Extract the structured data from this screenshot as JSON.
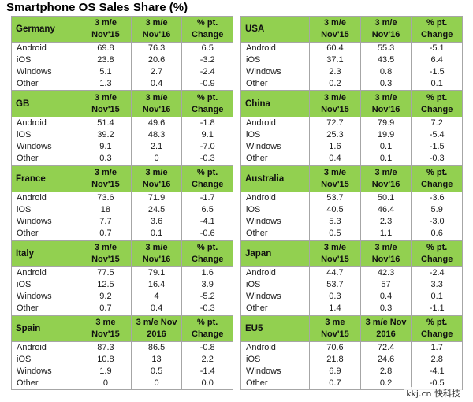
{
  "title": "Smartphone OS Sales Share (%)",
  "watermark": "kkj.cn 快科技",
  "colors": {
    "header_bg": "#92d050",
    "border": "#a6a6a6"
  },
  "regions": [
    {
      "name": "Germany",
      "headers": [
        "3 m/e Nov'15",
        "3 m/e Nov'16",
        "% pt. Change"
      ],
      "rows": [
        [
          "Android",
          "69.8",
          "76.3",
          "6.5"
        ],
        [
          "iOS",
          "23.8",
          "20.6",
          "-3.2"
        ],
        [
          "Windows",
          "5.1",
          "2.7",
          "-2.4"
        ],
        [
          "Other",
          "1.3",
          "0.4",
          "-0.9"
        ]
      ]
    },
    {
      "name": "GB",
      "headers": [
        "3 m/e Nov'15",
        "3 m/e Nov'16",
        "% pt. Change"
      ],
      "rows": [
        [
          "Android",
          "51.4",
          "49.6",
          "-1.8"
        ],
        [
          "iOS",
          "39.2",
          "48.3",
          "9.1"
        ],
        [
          "Windows",
          "9.1",
          "2.1",
          "-7.0"
        ],
        [
          "Other",
          "0.3",
          "0",
          "-0.3"
        ]
      ]
    },
    {
      "name": "France",
      "headers": [
        "3 m/e Nov'15",
        "3 m/e Nov'16",
        "% pt. Change"
      ],
      "rows": [
        [
          "Android",
          "73.6",
          "71.9",
          "-1.7"
        ],
        [
          "iOS",
          "18",
          "24.5",
          "6.5"
        ],
        [
          "Windows",
          "7.7",
          "3.6",
          "-4.1"
        ],
        [
          "Other",
          "0.7",
          "0.1",
          "-0.6"
        ]
      ]
    },
    {
      "name": "Italy",
      "headers": [
        "3 m/e Nov'15",
        "3 m/e Nov'16",
        "% pt. Change"
      ],
      "rows": [
        [
          "Android",
          "77.5",
          "79.1",
          "1.6"
        ],
        [
          "iOS",
          "12.5",
          "16.4",
          "3.9"
        ],
        [
          "Windows",
          "9.2",
          "4",
          "-5.2"
        ],
        [
          "Other",
          "0.7",
          "0.4",
          "-0.3"
        ]
      ]
    },
    {
      "name": "Spain",
      "headers": [
        "3 me Nov'15",
        "3 m/e Nov 2016",
        "% pt. Change"
      ],
      "rows": [
        [
          "Android",
          "87.3",
          "86.5",
          "-0.8"
        ],
        [
          "iOS",
          "10.8",
          "13",
          "2.2"
        ],
        [
          "Windows",
          "1.9",
          "0.5",
          "-1.4"
        ],
        [
          "Other",
          "0",
          "0",
          "0.0"
        ]
      ]
    },
    {
      "name": "USA",
      "headers": [
        "3 m/e Nov'15",
        "3 m/e Nov'16",
        "% pt. Change"
      ],
      "rows": [
        [
          "Android",
          "60.4",
          "55.3",
          "-5.1"
        ],
        [
          "iOS",
          "37.1",
          "43.5",
          "6.4"
        ],
        [
          "Windows",
          "2.3",
          "0.8",
          "-1.5"
        ],
        [
          "Other",
          "0.2",
          "0.3",
          "0.1"
        ]
      ]
    },
    {
      "name": "China",
      "headers": [
        "3 m/e Nov'15",
        "3 m/e Nov'16",
        "% pt. Change"
      ],
      "rows": [
        [
          "Android",
          "72.7",
          "79.9",
          "7.2"
        ],
        [
          "iOS",
          "25.3",
          "19.9",
          "-5.4"
        ],
        [
          "Windows",
          "1.6",
          "0.1",
          "-1.5"
        ],
        [
          "Other",
          "0.4",
          "0.1",
          "-0.3"
        ]
      ]
    },
    {
      "name": "Australia",
      "headers": [
        "3 m/e Nov'15",
        "3 m/e Nov'16",
        "% pt. Change"
      ],
      "rows": [
        [
          "Android",
          "53.7",
          "50.1",
          "-3.6"
        ],
        [
          "iOS",
          "40.5",
          "46.4",
          "5.9"
        ],
        [
          "Windows",
          "5.3",
          "2.3",
          "-3.0"
        ],
        [
          "Other",
          "0.5",
          "1.1",
          "0.6"
        ]
      ]
    },
    {
      "name": "Japan",
      "headers": [
        "3 m/e Nov'15",
        "3 m/e Nov'16",
        "% pt. Change"
      ],
      "rows": [
        [
          "Android",
          "44.7",
          "42.3",
          "-2.4"
        ],
        [
          "iOS",
          "53.7",
          "57",
          "3.3"
        ],
        [
          "Windows",
          "0.3",
          "0.4",
          "0.1"
        ],
        [
          "Other",
          "1.4",
          "0.3",
          "-1.1"
        ]
      ]
    },
    {
      "name": "EU5",
      "headers": [
        "3 me Nov'15",
        "3 m/e Nov 2016",
        "% pt. Change"
      ],
      "rows": [
        [
          "Android",
          "70.6",
          "72.4",
          "1.7"
        ],
        [
          "iOS",
          "21.8",
          "24.6",
          "2.8"
        ],
        [
          "Windows",
          "6.9",
          "2.8",
          "-4.1"
        ],
        [
          "Other",
          "0.7",
          "0.2",
          "-0.5"
        ]
      ]
    }
  ]
}
